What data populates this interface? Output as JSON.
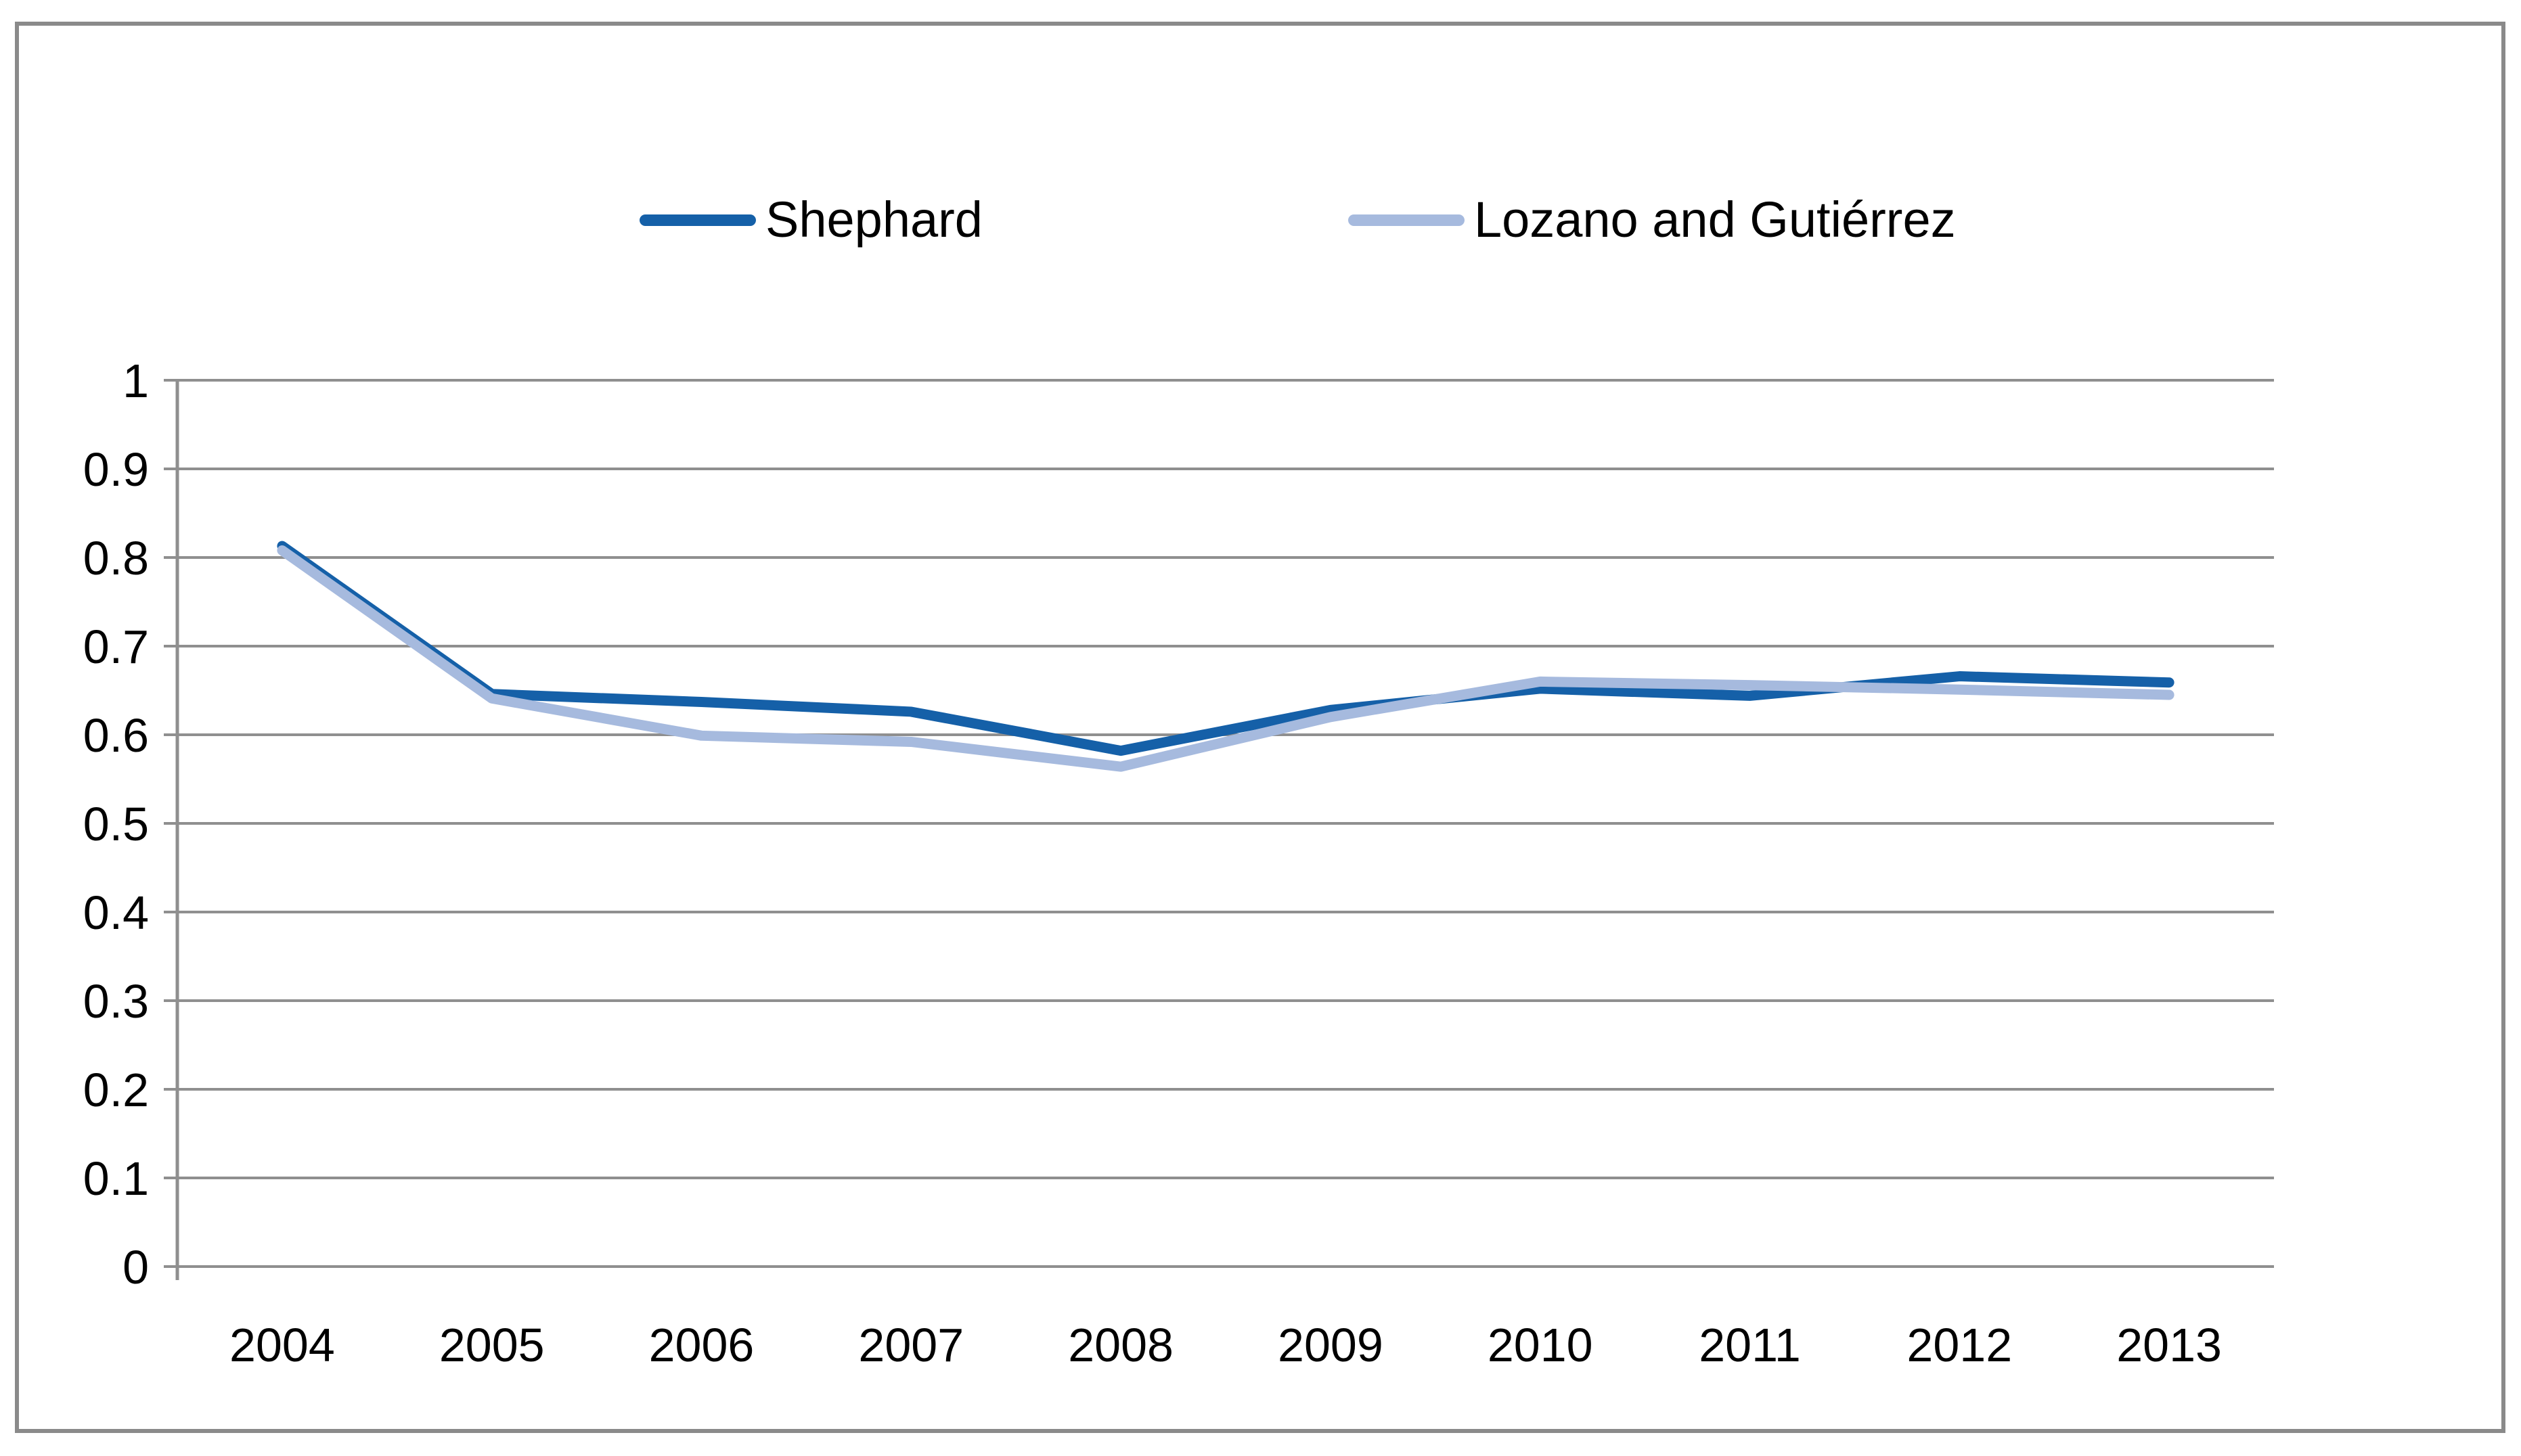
{
  "chart_data": {
    "type": "line",
    "title": "",
    "xlabel": "",
    "ylabel": "",
    "categories": [
      "2004",
      "2005",
      "2006",
      "2007",
      "2008",
      "2009",
      "2010",
      "2011",
      "2012",
      "2013"
    ],
    "series": [
      {
        "name": "Shephard",
        "color": "#1560a8",
        "values": [
          0.813,
          0.646,
          0.637,
          0.626,
          0.582,
          0.628,
          0.652,
          0.644,
          0.666,
          0.659
        ]
      },
      {
        "name": "Lozano and Gutiérrez",
        "color": "#a6bade",
        "values": [
          0.808,
          0.641,
          0.599,
          0.592,
          0.564,
          0.62,
          0.66,
          0.656,
          0.651,
          0.645
        ]
      }
    ],
    "ylim": [
      0,
      1
    ],
    "ytick_labels_bottom_to_top": [
      "0",
      "0.1",
      "0.2",
      "0.3",
      "0.4",
      "0.5",
      "0.6",
      "0.7",
      "0.8",
      "0.9",
      "1"
    ],
    "grid": "horizontal",
    "gridline_color": "#8f8f8f",
    "axis_color": "#8f8f8f",
    "legend_position": "top",
    "line_width": 15
  }
}
